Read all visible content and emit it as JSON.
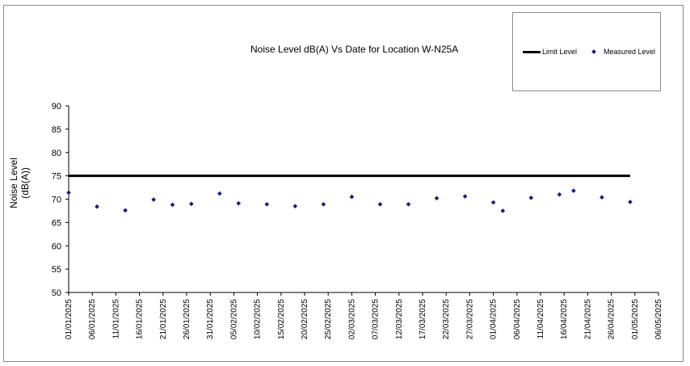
{
  "chart_data": {
    "type": "scatter",
    "title": "Noise Level dB(A) Vs Date for Location W-N25A",
    "ylabel": "Noise Level (dB(A))",
    "ylabel_lines": [
      "Noise Level",
      "(dB(A))"
    ],
    "ylim": [
      50,
      90
    ],
    "yticks": [
      "50",
      "55",
      "60",
      "65",
      "70",
      "75",
      "80",
      "85",
      "90"
    ],
    "xlim": [
      "01/01/2025",
      "06/05/2025"
    ],
    "xticks": [
      "01/01/2025",
      "06/01/2025",
      "11/01/2025",
      "16/01/2025",
      "21/01/2025",
      "26/01/2025",
      "31/01/2025",
      "05/02/2025",
      "10/02/2025",
      "15/02/2025",
      "20/02/2025",
      "25/02/2025",
      "02/03/2025",
      "07/03/2025",
      "12/03/2025",
      "17/03/2025",
      "22/03/2025",
      "27/03/2025",
      "01/04/2025",
      "06/04/2025",
      "11/04/2025",
      "16/04/2025",
      "21/04/2025",
      "26/04/2025",
      "01/05/2025",
      "06/05/2025"
    ],
    "grid": false,
    "legend_position": "top-right",
    "series": [
      {
        "name": "Limit Level",
        "kind": "line",
        "color": "#000000",
        "x": [
          "01/01/2025",
          "30/04/2025"
        ],
        "y": [
          75,
          75
        ]
      },
      {
        "name": "Measured Level",
        "kind": "scatter",
        "color": "#1a1a7a",
        "x": [
          "01/01/2025",
          "07/01/2025",
          "13/01/2025",
          "19/01/2025",
          "23/01/2025",
          "27/01/2025",
          "02/02/2025",
          "06/02/2025",
          "12/02/2025",
          "18/02/2025",
          "24/02/2025",
          "02/03/2025",
          "08/03/2025",
          "14/03/2025",
          "20/03/2025",
          "26/03/2025",
          "01/04/2025",
          "03/04/2025",
          "09/04/2025",
          "15/04/2025",
          "18/04/2025",
          "24/04/2025",
          "30/04/2025"
        ],
        "y": [
          71.4,
          68.4,
          67.6,
          69.9,
          68.8,
          69.0,
          71.2,
          69.1,
          68.9,
          68.5,
          68.9,
          70.5,
          68.9,
          68.9,
          70.2,
          70.6,
          69.3,
          67.5,
          70.3,
          71.0,
          71.8,
          70.4,
          69.4
        ]
      }
    ]
  }
}
